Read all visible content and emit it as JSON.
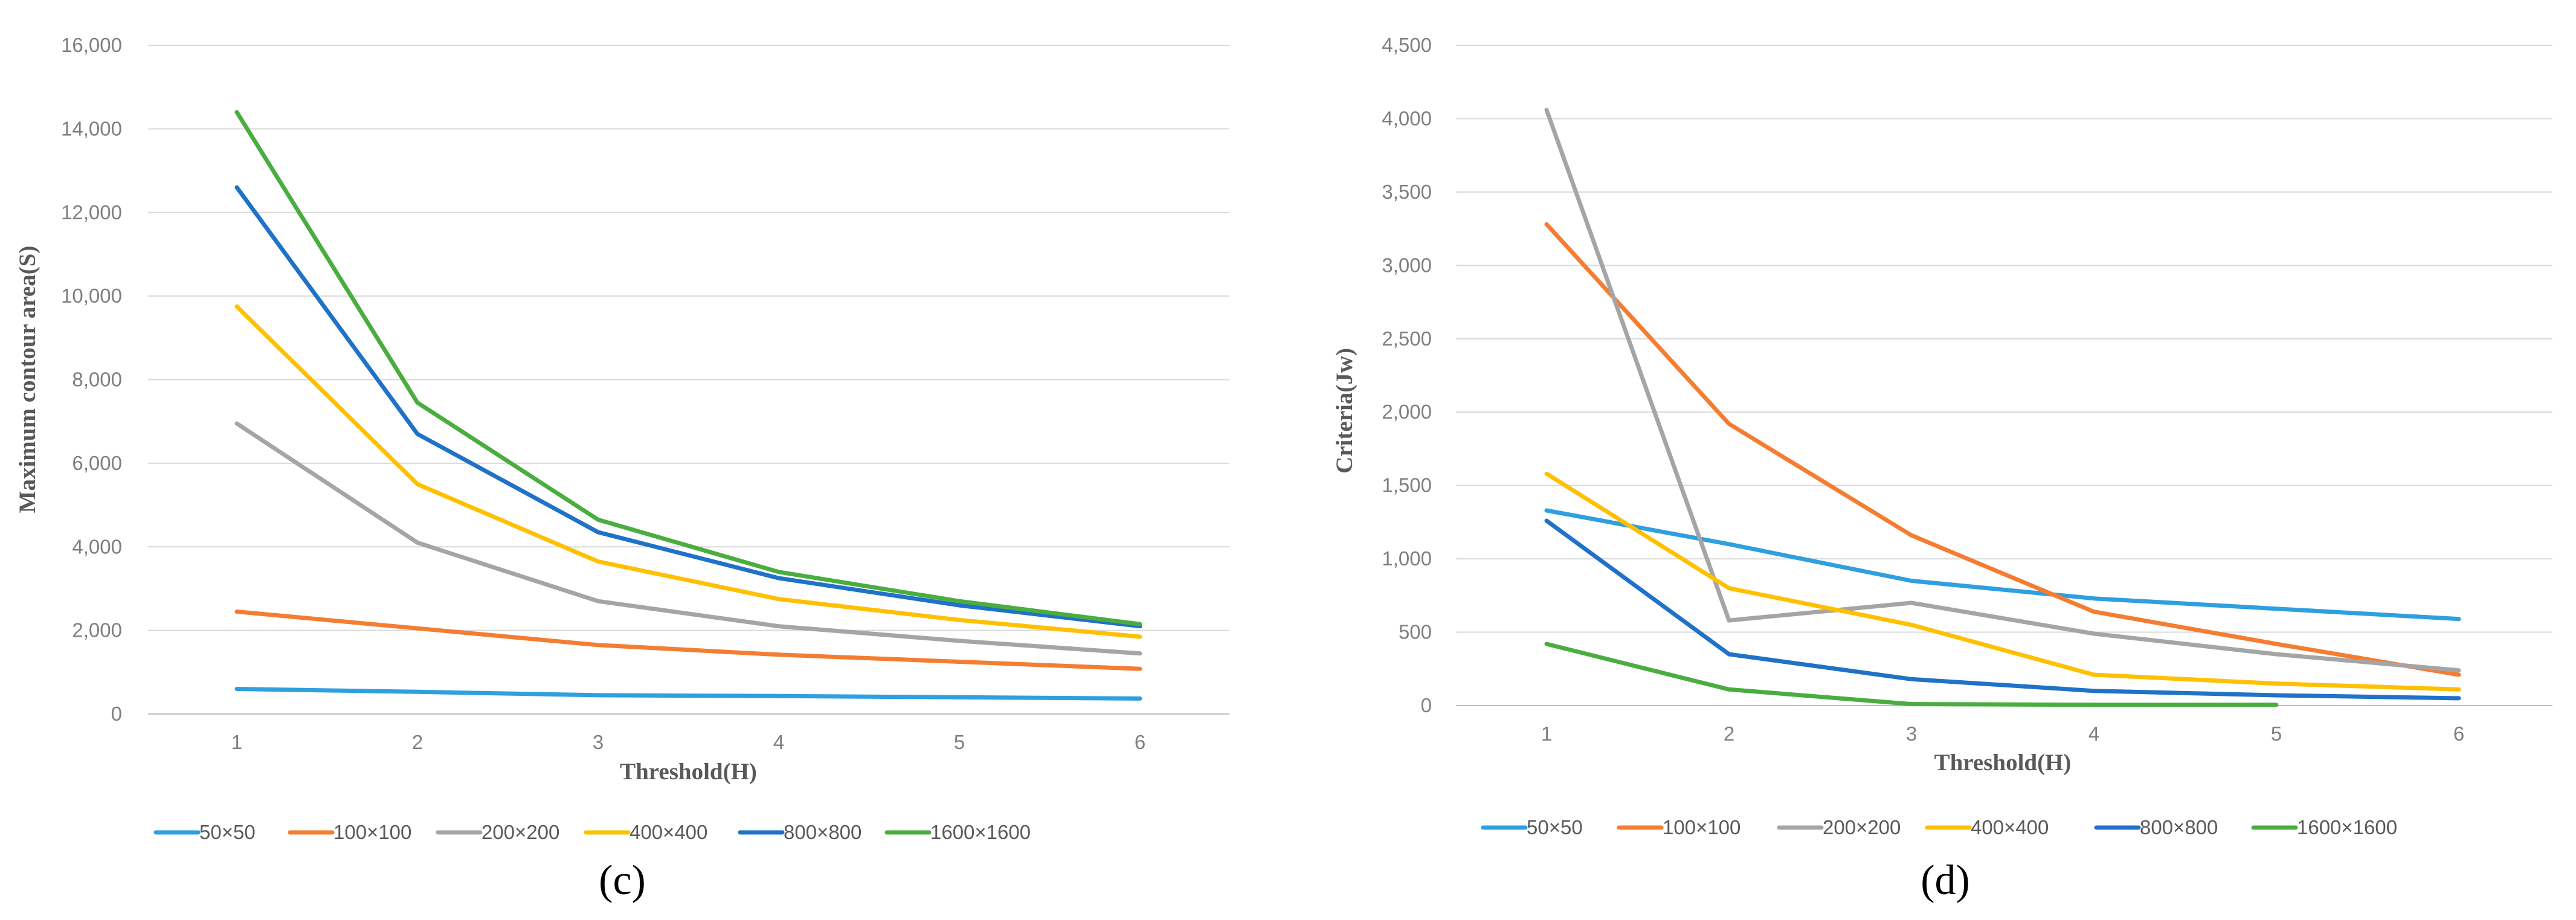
{
  "chart_data": [
    {
      "type": "line",
      "title": "",
      "panel_label": "(c)",
      "xlabel": "Threshold(H)",
      "ylabel": "Maximum contour area(S)",
      "x": [
        1,
        2,
        3,
        4,
        5,
        6
      ],
      "x_tick_labels": [
        "1",
        "2",
        "3",
        "4",
        "5",
        "6"
      ],
      "ylim": [
        0,
        16000
      ],
      "y_ticks": [
        0,
        2000,
        4000,
        6000,
        8000,
        10000,
        12000,
        14000,
        16000
      ],
      "y_tick_labels": [
        "0",
        "2,000",
        "4,000",
        "6,000",
        "8,000",
        "10,000",
        "12,000",
        "14,000",
        "16,000"
      ],
      "grid": true,
      "legend_position": "bottom",
      "series": [
        {
          "name": "50×50",
          "color": "#2e9fdf",
          "values": [
            600,
            530,
            450,
            430,
            400,
            370
          ]
        },
        {
          "name": "100×100",
          "color": "#f47d32",
          "values": [
            2450,
            2050,
            1650,
            1420,
            1250,
            1080
          ]
        },
        {
          "name": "200×200",
          "color": "#a5a5a5",
          "values": [
            6950,
            4100,
            2700,
            2100,
            1750,
            1450
          ]
        },
        {
          "name": "400×400",
          "color": "#ffc000",
          "values": [
            9750,
            5500,
            3650,
            2750,
            2250,
            1850
          ]
        },
        {
          "name": "800×800",
          "color": "#1f72c8",
          "values": [
            12600,
            6700,
            4350,
            3250,
            2600,
            2100
          ]
        },
        {
          "name": "1600×1600",
          "color": "#4aad3f",
          "values": [
            14400,
            7450,
            4650,
            3400,
            2700,
            2150
          ]
        }
      ]
    },
    {
      "type": "line",
      "title": "",
      "panel_label": "(d)",
      "xlabel": "Threshold(H)",
      "ylabel": "Criteria(Jw)",
      "x": [
        1,
        2,
        3,
        4,
        5,
        6
      ],
      "x_tick_labels": [
        "1",
        "2",
        "3",
        "4",
        "5",
        "6"
      ],
      "ylim": [
        0,
        4500
      ],
      "y_ticks": [
        0,
        500,
        1000,
        1500,
        2000,
        2500,
        3000,
        3500,
        4000,
        4500
      ],
      "y_tick_labels": [
        "0",
        "500",
        "1,000",
        "1,500",
        "2,000",
        "2,500",
        "3,000",
        "3,500",
        "4,000",
        "4,500"
      ],
      "grid": true,
      "legend_position": "bottom",
      "series": [
        {
          "name": "50×50",
          "color": "#2e9fdf",
          "values": [
            1330,
            1100,
            850,
            730,
            660,
            590
          ]
        },
        {
          "name": "100×100",
          "color": "#f47d32",
          "values": [
            3280,
            1920,
            1160,
            640,
            420,
            210
          ]
        },
        {
          "name": "200×200",
          "color": "#a5a5a5",
          "values": [
            4060,
            580,
            700,
            490,
            350,
            240
          ]
        },
        {
          "name": "400×400",
          "color": "#ffc000",
          "values": [
            1580,
            800,
            550,
            210,
            150,
            110
          ]
        },
        {
          "name": "800×800",
          "color": "#1f72c8",
          "values": [
            1260,
            350,
            180,
            100,
            70,
            50
          ]
        },
        {
          "name": "1600×1600",
          "color": "#4aad3f",
          "values": [
            420,
            110,
            10,
            5,
            5,
            null
          ]
        }
      ]
    }
  ]
}
